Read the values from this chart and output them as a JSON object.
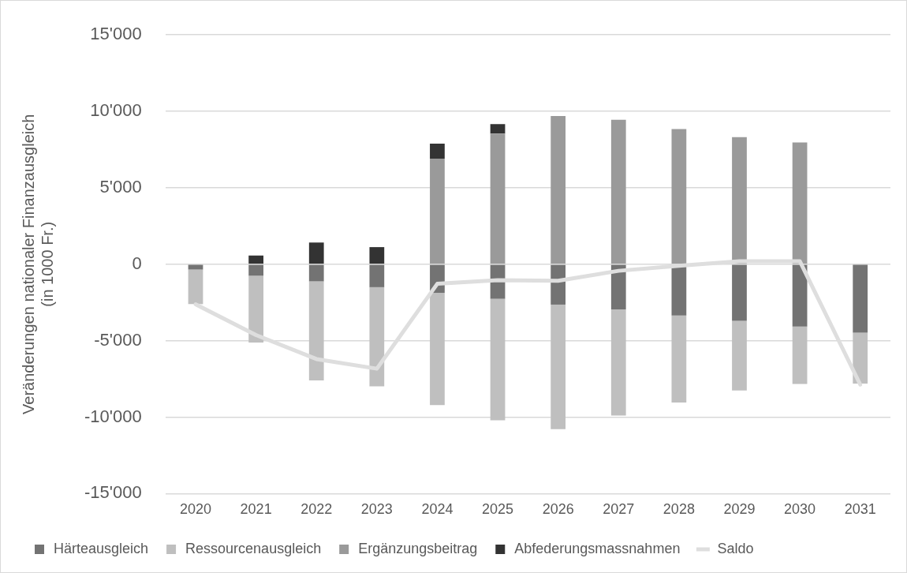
{
  "chart_data": {
    "type": "bar",
    "stacked": true,
    "ylabel": "Veränderungen nationaler Finanzausgleich\n(in 1000 Fr.)",
    "categories": [
      "2020",
      "2021",
      "2022",
      "2023",
      "2024",
      "2025",
      "2026",
      "2027",
      "2028",
      "2029",
      "2030",
      "2031"
    ],
    "series": [
      {
        "name": "Härteausgleich",
        "color": "#737373",
        "values": [
          -350,
          -750,
          -1120,
          -1500,
          -1870,
          -2260,
          -2640,
          -2950,
          -3350,
          -3700,
          -4070,
          -4470
        ]
      },
      {
        "name": "Ressourcenausgleich",
        "color": "#bfbfbf",
        "values": [
          -2260,
          -4370,
          -6480,
          -6480,
          -7340,
          -7940,
          -8150,
          -6950,
          -5690,
          -4550,
          -3760,
          -3330
        ]
      },
      {
        "name": "Ergänzungsbeitrag",
        "color": "#9a9a9a",
        "values": [
          null,
          null,
          null,
          null,
          6910,
          8540,
          9690,
          9450,
          8840,
          8310,
          7970,
          null
        ]
      },
      {
        "name": "Abfederungsmassnahmen",
        "color": "#333333",
        "values": [
          null,
          570,
          1420,
          1120,
          980,
          630,
          null,
          null,
          null,
          null,
          null,
          null
        ]
      },
      {
        "name": "Saldo",
        "type": "line",
        "color": "#dedede",
        "values": [
          -2620,
          -4630,
          -6200,
          -6830,
          -1280,
          -1040,
          -1080,
          -430,
          -100,
          200,
          200,
          -7870
        ]
      }
    ],
    "ylim": [
      -15000,
      15000
    ],
    "yticks": [
      {
        "value": -15000,
        "label": "-15'000"
      },
      {
        "value": -10000,
        "label": "-10'000"
      },
      {
        "value": -5000,
        "label": "-5'000"
      },
      {
        "value": 0,
        "label": "0"
      },
      {
        "value": 5000,
        "label": "5'000"
      },
      {
        "value": 10000,
        "label": "10'000"
      },
      {
        "value": 15000,
        "label": "15'000"
      }
    ],
    "grid": "y",
    "legend": "bottom",
    "marker": "none"
  }
}
